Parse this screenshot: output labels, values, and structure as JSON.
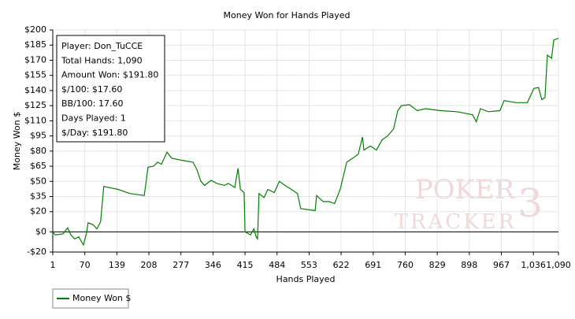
{
  "chart_data": {
    "type": "line",
    "title": "Money Won for Hands Played",
    "x_label": "Hands Played",
    "y_label": "Money Won $",
    "xlim": [
      1,
      1090
    ],
    "ylim": [
      -20,
      200
    ],
    "xticks": [
      1,
      70,
      139,
      208,
      277,
      346,
      415,
      484,
      553,
      622,
      691,
      760,
      829,
      898,
      967,
      {
        "value": 1036,
        "label": "1,036"
      },
      {
        "value": 1090,
        "label": "1,090"
      }
    ],
    "yticks": [
      {
        "value": -20,
        "label": "-$20"
      },
      {
        "value": 0,
        "label": "$0"
      },
      {
        "value": 20,
        "label": "$20"
      },
      {
        "value": 35,
        "label": "$35"
      },
      {
        "value": 50,
        "label": "$50"
      },
      {
        "value": 65,
        "label": "$65"
      },
      {
        "value": 80,
        "label": "$80"
      },
      {
        "value": 95,
        "label": "$95"
      },
      {
        "value": 110,
        "label": "$110"
      },
      {
        "value": 125,
        "label": "$125"
      },
      {
        "value": 140,
        "label": "$140"
      },
      {
        "value": 155,
        "label": "$155"
      },
      {
        "value": 170,
        "label": "$170"
      },
      {
        "value": 185,
        "label": "$185"
      },
      {
        "value": 200,
        "label": "$200"
      }
    ],
    "grid": true,
    "zero_line": true,
    "legend_position": "bottom-left",
    "info_box": [
      "Player: Don_TuCCE",
      "Total Hands: 1,090",
      "Amount Won: $191.80",
      "$/100: $17.60",
      "BB/100: 17.60",
      "Days Played: 1",
      "$/Day: $191.80"
    ],
    "watermark": [
      "POKER",
      "TRACKER",
      "3"
    ],
    "x": [
      1,
      6,
      23,
      33,
      40,
      48,
      57,
      67,
      74,
      77,
      88,
      96,
      104,
      111,
      142,
      167,
      198,
      201,
      206,
      218,
      227,
      235,
      247,
      257,
      278,
      303,
      311,
      320,
      328,
      342,
      354,
      371,
      379,
      393,
      400,
      405,
      413,
      415,
      427,
      434,
      439,
      442,
      445,
      456,
      464,
      478,
      489,
      501,
      515,
      528,
      535,
      566,
      569,
      583,
      596,
      608,
      620,
      634,
      647,
      659,
      668,
      671,
      685,
      698,
      710,
      722,
      735,
      744,
      752,
      769,
      786,
      803,
      837,
      871,
      905,
      913,
      922,
      939,
      964,
      973,
      998,
      1023,
      1037,
      1047,
      1054,
      1061,
      1066,
      1075,
      1080,
      1090
    ],
    "series": [
      {
        "name": "Money Won $",
        "color": "#008000",
        "values": [
          0,
          -3,
          -2,
          4,
          -3,
          -7,
          -5,
          -13,
          -1,
          9,
          7,
          3,
          10,
          45,
          42,
          38,
          36,
          46,
          64,
          65,
          69,
          67,
          79,
          73,
          71,
          69,
          62,
          50,
          46,
          51,
          48,
          46,
          48,
          44,
          63,
          42,
          39,
          0,
          -3,
          3,
          -5,
          -7,
          38,
          34,
          42,
          39,
          50,
          46,
          42,
          38,
          23,
          21,
          36,
          30,
          30,
          28,
          42,
          69,
          73,
          77,
          94,
          81,
          85,
          81,
          91,
          95,
          102,
          120,
          125,
          126,
          120,
          122,
          120,
          119,
          116,
          109,
          122,
          119,
          120,
          130,
          128,
          128,
          142,
          143,
          131,
          133,
          175,
          172,
          190,
          191.8
        ]
      }
    ]
  }
}
